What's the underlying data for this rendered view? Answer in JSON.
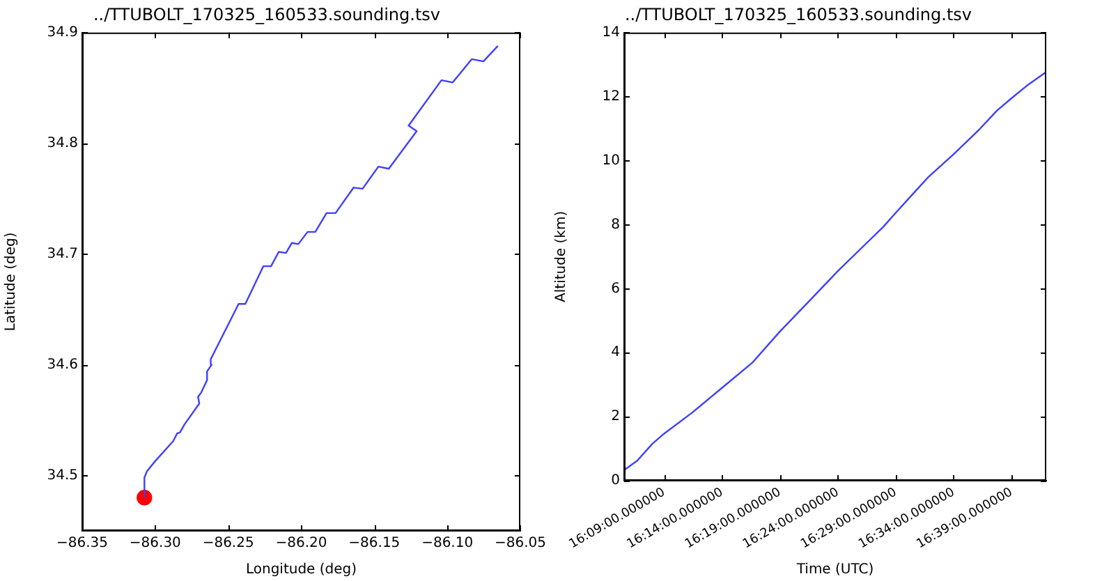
{
  "chart_data": [
    {
      "type": "line",
      "title": "../TTUBOLT_170325_160533.sounding.tsv",
      "xlabel": "Longitude (deg)",
      "ylabel": "Latitude (deg)",
      "xlim": [
        -86.35,
        -86.05
      ],
      "ylim": [
        34.45,
        34.9
      ],
      "xticks": [
        {
          "value": -86.35,
          "label": "−86.35"
        },
        {
          "value": -86.3,
          "label": "−86.30"
        },
        {
          "value": -86.25,
          "label": "−86.25"
        },
        {
          "value": -86.2,
          "label": "−86.20"
        },
        {
          "value": -86.15,
          "label": "−86.15"
        },
        {
          "value": -86.1,
          "label": "−86.10"
        },
        {
          "value": -86.05,
          "label": "−86.05"
        }
      ],
      "yticks": [
        34.5,
        34.6,
        34.7,
        34.8,
        34.9
      ],
      "grid": false,
      "legend": false,
      "series": [
        {
          "type": "line",
          "color": "#3f3fff",
          "marker": "none",
          "x": [
            -86.3074,
            -86.3074,
            -86.3056,
            -86.3,
            -86.2877,
            -86.285,
            -86.283,
            -86.28,
            -86.2698,
            -86.2707,
            -86.2685,
            -86.2645,
            -86.2645,
            -86.2614,
            -86.262,
            -86.2429,
            -86.2383,
            -86.226,
            -86.2207,
            -86.2154,
            -86.2105,
            -86.2065,
            -86.202,
            -86.1957,
            -86.1904,
            -86.1827,
            -86.1765,
            -86.1642,
            -86.158,
            -86.1472,
            -86.1401,
            -86.121,
            -86.1265,
            -86.104,
            -86.0963,
            -86.0833,
            -86.0753,
            -86.0654
          ],
          "values": [
            34.48,
            34.498,
            34.504,
            34.513,
            34.531,
            34.538,
            34.539,
            34.546,
            34.565,
            34.571,
            34.575,
            34.586,
            34.594,
            34.6,
            34.605,
            34.655,
            34.655,
            34.689,
            34.689,
            34.702,
            34.701,
            34.71,
            34.709,
            34.72,
            34.72,
            34.737,
            34.737,
            34.76,
            34.759,
            34.779,
            34.777,
            34.811,
            34.816,
            34.857,
            34.855,
            34.876,
            34.874,
            34.888
          ]
        },
        {
          "type": "scatter",
          "color": "#ff0000",
          "marker": "circle",
          "x": [
            -86.3074
          ],
          "values": [
            34.48
          ]
        }
      ]
    },
    {
      "type": "line",
      "title": "../TTUBOLT_170325_160533.sounding.tsv",
      "xlabel": "Time (UTC)",
      "ylabel": "Altitude (km)",
      "xlim": [
        "--03-25T16:05:33",
        "--03-25T16:42:00"
      ],
      "ylim": [
        0,
        14
      ],
      "xticks": [
        {
          "value": "--03-25T16:09:00",
          "label": "16:09:00.000000"
        },
        {
          "value": "--03-25T16:14:00",
          "label": "16:14:00.000000"
        },
        {
          "value": "--03-25T16:19:00",
          "label": "16:19:00.000000"
        },
        {
          "value": "--03-25T16:24:00",
          "label": "16:24:00.000000"
        },
        {
          "value": "--03-25T16:29:00",
          "label": "16:29:00.000000"
        },
        {
          "value": "--03-25T16:34:00",
          "label": "16:34:00.000000"
        },
        {
          "value": "--03-25T16:39:00",
          "label": "16:39:00.000000"
        }
      ],
      "yticks": [
        0,
        2,
        4,
        6,
        8,
        10,
        12,
        14
      ],
      "grid": false,
      "legend": false,
      "series": [
        {
          "type": "line",
          "color": "#3f3fff",
          "marker": "none",
          "x": [
            "--03-25T16:05:33",
            "--03-25T16:06:40",
            "--03-25T16:07:59",
            "--03-25T16:09:00",
            "--03-25T16:11:24",
            "--03-25T16:14:00",
            "--03-25T16:16:36",
            "--03-25T16:19:00",
            "--03-25T16:21:25",
            "--03-25T16:24:00",
            "--03-25T16:26:13",
            "--03-25T16:27:54",
            "--03-25T16:29:00",
            "--03-25T16:30:29",
            "--03-25T16:31:48",
            "--03-25T16:34:00",
            "--03-25T16:36:14",
            "--03-25T16:37:44",
            "--03-25T16:39:00",
            "--03-25T16:40:19",
            "--03-25T16:42:00"
          ],
          "values": [
            0.33,
            0.62,
            1.15,
            1.47,
            2.12,
            2.9,
            3.68,
            4.66,
            5.57,
            6.55,
            7.33,
            7.92,
            8.37,
            8.96,
            9.48,
            10.2,
            10.98,
            11.56,
            11.95,
            12.34,
            12.77
          ]
        }
      ]
    }
  ]
}
